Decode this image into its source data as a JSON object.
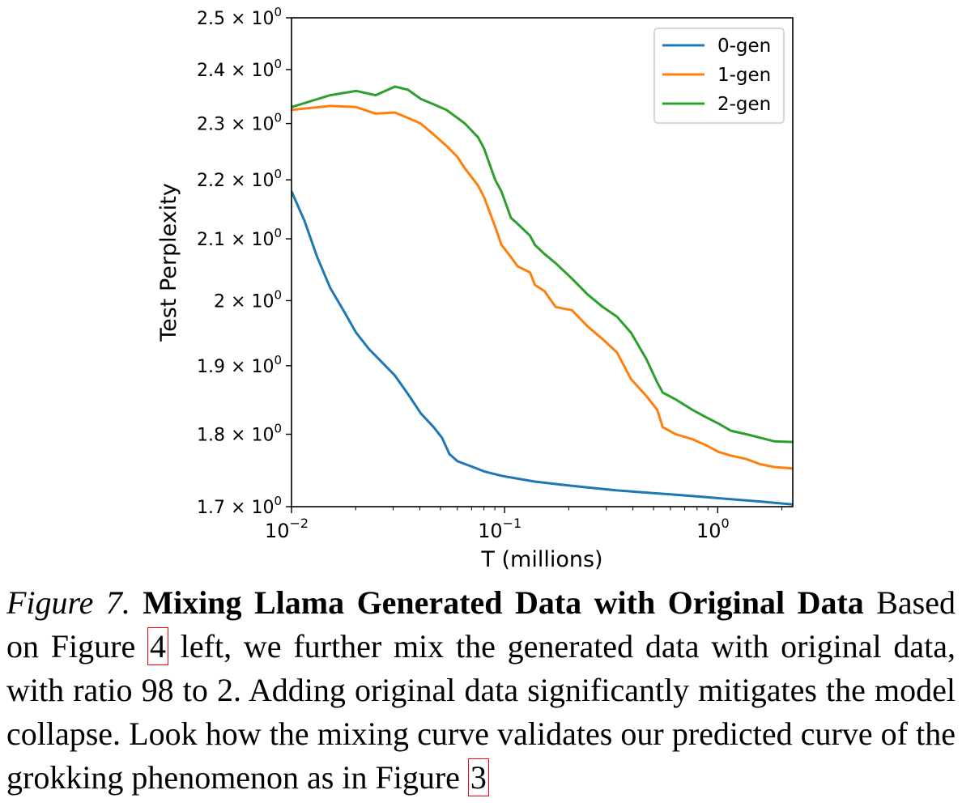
{
  "chart_data": {
    "type": "line",
    "title": "",
    "xlabel": "T (millions)",
    "ylabel": "Test Perplexity",
    "xscale": "log",
    "yscale": "log",
    "xlim": [
      0.01,
      2.25
    ],
    "ylim": [
      1.7,
      2.5
    ],
    "x_ticks": [
      {
        "value": 0.01,
        "base": "10",
        "exp": "−2"
      },
      {
        "value": 0.1,
        "base": "10",
        "exp": "−1"
      },
      {
        "value": 1,
        "base": "10",
        "exp": "0"
      }
    ],
    "y_ticks": [
      {
        "value": 1.7,
        "label": "1.7 × 10",
        "exp": "0"
      },
      {
        "value": 1.8,
        "label": "1.8 × 10",
        "exp": "0"
      },
      {
        "value": 1.9,
        "label": "1.9 × 10",
        "exp": "0"
      },
      {
        "value": 2.0,
        "label": "2 × 10",
        "exp": "0"
      },
      {
        "value": 2.1,
        "label": "2.1 × 10",
        "exp": "0"
      },
      {
        "value": 2.2,
        "label": "2.2 × 10",
        "exp": "0"
      },
      {
        "value": 2.3,
        "label": "2.3 × 10",
        "exp": "0"
      },
      {
        "value": 2.4,
        "label": "2.4 × 10",
        "exp": "0"
      },
      {
        "value": 2.5,
        "label": "2.5 × 10",
        "exp": "0"
      }
    ],
    "legend_position": "top-right",
    "series": [
      {
        "name": "0-gen",
        "color": "#1f77b4",
        "x": [
          0.01,
          0.0115,
          0.0132,
          0.0152,
          0.0175,
          0.0201,
          0.0231,
          0.0266,
          0.0306,
          0.0352,
          0.0404,
          0.0465,
          0.0508,
          0.0551,
          0.0601,
          0.0696,
          0.0801,
          0.0966,
          0.1151,
          0.1387,
          0.1818,
          0.2449,
          0.3367,
          0.4627,
          0.6359,
          0.8741,
          1.1515,
          1.5821,
          2.25
        ],
        "y": [
          2.18,
          2.13,
          2.07,
          2.02,
          1.985,
          1.95,
          1.925,
          1.905,
          1.885,
          1.858,
          1.83,
          1.81,
          1.795,
          1.772,
          1.762,
          1.755,
          1.748,
          1.742,
          1.738,
          1.734,
          1.73,
          1.726,
          1.722,
          1.719,
          1.716,
          1.713,
          1.71,
          1.707,
          1.703
        ]
      },
      {
        "name": "1-gen",
        "color": "#ff7f0e",
        "x": [
          0.01,
          0.0152,
          0.0201,
          0.0248,
          0.0306,
          0.0352,
          0.0404,
          0.0465,
          0.0533,
          0.0601,
          0.0651,
          0.0751,
          0.0801,
          0.0903,
          0.0966,
          0.1071,
          0.1151,
          0.1317,
          0.1387,
          0.1538,
          0.1736,
          0.2072,
          0.2449,
          0.2889,
          0.3367,
          0.3921,
          0.4627,
          0.5199,
          0.5521,
          0.6359,
          0.7605,
          0.8741,
          1.0114,
          1.1515,
          1.3635,
          1.5821,
          1.8345,
          2.25
        ],
        "y": [
          2.325,
          2.332,
          2.33,
          2.318,
          2.32,
          2.31,
          2.3,
          2.28,
          2.26,
          2.24,
          2.22,
          2.19,
          2.17,
          2.12,
          2.09,
          2.07,
          2.055,
          2.045,
          2.025,
          2.015,
          1.99,
          1.985,
          1.96,
          1.94,
          1.92,
          1.88,
          1.855,
          1.835,
          1.81,
          1.8,
          1.793,
          1.785,
          1.775,
          1.77,
          1.765,
          1.758,
          1.754,
          1.752
        ]
      },
      {
        "name": "2-gen",
        "color": "#2ca02c",
        "x": [
          0.01,
          0.0152,
          0.0201,
          0.0248,
          0.0306,
          0.0352,
          0.0404,
          0.0465,
          0.0533,
          0.0601,
          0.0651,
          0.0751,
          0.0801,
          0.0903,
          0.0966,
          0.1071,
          0.1151,
          0.1317,
          0.1387,
          0.1538,
          0.1736,
          0.2072,
          0.2449,
          0.2889,
          0.3367,
          0.3921,
          0.4627,
          0.5199,
          0.5521,
          0.6359,
          0.7605,
          0.8741,
          1.0114,
          1.1515,
          1.3635,
          1.5821,
          1.8345,
          2.25
        ],
        "y": [
          2.33,
          2.352,
          2.36,
          2.352,
          2.368,
          2.362,
          2.345,
          2.335,
          2.325,
          2.31,
          2.3,
          2.275,
          2.255,
          2.2,
          2.18,
          2.135,
          2.125,
          2.105,
          2.09,
          2.075,
          2.06,
          2.035,
          2.01,
          1.99,
          1.975,
          1.95,
          1.91,
          1.875,
          1.86,
          1.85,
          1.835,
          1.825,
          1.815,
          1.805,
          1.8,
          1.795,
          1.79,
          1.789
        ]
      }
    ]
  },
  "caption": {
    "label": "Figure 7.",
    "title": "Mixing Llama Generated Data with Original Data",
    "text_part1": "Based on Figure ",
    "ref1": "4",
    "text_part2": " left, we further mix the generated data with original data, with ratio 98 to 2. Adding original data significantly mitigates the model collapse. Look how the mixing curve validates our predicted curve of the grokking phenomenon as in Figure ",
    "ref2": "3"
  }
}
